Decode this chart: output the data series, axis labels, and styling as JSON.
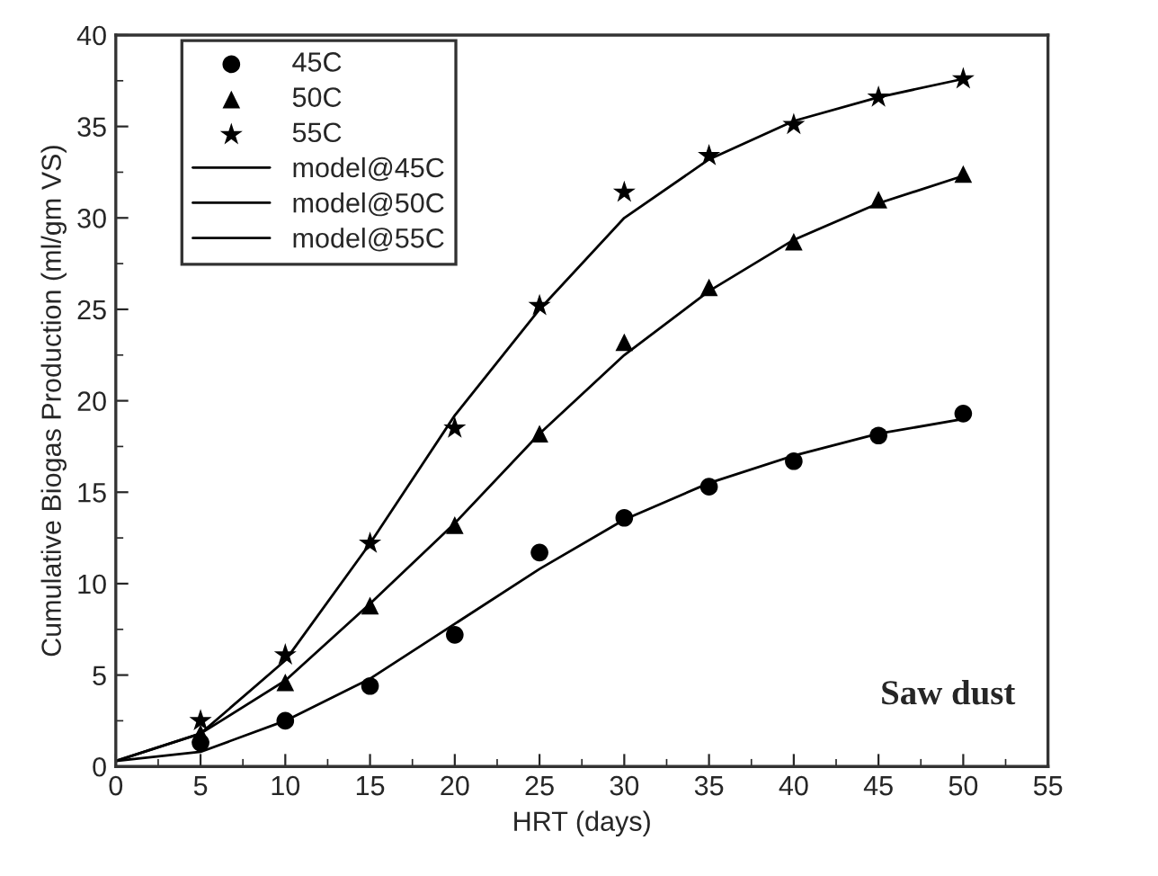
{
  "chart_data": {
    "type": "line",
    "xlabel": "HRT (days)",
    "ylabel": "Cumulative Biogas Production (ml/gm VS)",
    "xlim": [
      0,
      55
    ],
    "ylim": [
      0,
      40
    ],
    "xticks": [
      0,
      5,
      10,
      15,
      20,
      25,
      30,
      35,
      40,
      45,
      50,
      55
    ],
    "yticks": [
      0,
      5,
      10,
      15,
      20,
      25,
      30,
      35,
      40
    ],
    "grid": false,
    "legend": "top left",
    "annotations": [
      "Saw dust"
    ],
    "series": [
      {
        "name": "45C",
        "type": "scatter",
        "marker": "circle",
        "color": "#000000",
        "x": [
          5,
          10,
          15,
          20,
          25,
          30,
          35,
          40,
          45,
          50
        ],
        "values": [
          1.3,
          2.5,
          4.4,
          7.2,
          11.7,
          13.6,
          15.3,
          16.7,
          18.1,
          19.3
        ]
      },
      {
        "name": "50C",
        "type": "scatter",
        "marker": "triangle",
        "color": "#000000",
        "x": [
          5,
          10,
          15,
          20,
          25,
          30,
          35,
          40,
          45,
          50
        ],
        "values": [
          1.8,
          4.6,
          8.8,
          13.2,
          18.2,
          23.2,
          26.2,
          28.7,
          31.0,
          32.4
        ]
      },
      {
        "name": "55C",
        "type": "scatter",
        "marker": "star",
        "color": "#000000",
        "x": [
          5,
          10,
          15,
          20,
          25,
          30,
          35,
          40,
          45,
          50
        ],
        "values": [
          2.5,
          6.1,
          12.2,
          18.5,
          25.2,
          31.4,
          33.4,
          35.1,
          36.6,
          37.6
        ]
      },
      {
        "name": "model@45C",
        "marker": "none",
        "line_style": "solid",
        "color": "#000000",
        "x": [
          0,
          5,
          10,
          15,
          20,
          25,
          30,
          35,
          40,
          45,
          50
        ],
        "values": [
          0.3,
          0.8,
          2.5,
          4.8,
          7.8,
          10.8,
          13.5,
          15.5,
          17.0,
          18.2,
          19.0
        ]
      },
      {
        "name": "model@50C",
        "marker": "none",
        "line_style": "solid",
        "color": "#000000",
        "x": [
          0,
          5,
          10,
          15,
          20,
          25,
          30,
          35,
          40,
          45,
          50
        ],
        "values": [
          0.3,
          1.8,
          4.7,
          8.9,
          13.3,
          18.2,
          22.5,
          26.0,
          28.8,
          30.8,
          32.3
        ]
      },
      {
        "name": "model@55C",
        "marker": "none",
        "line_style": "solid",
        "color": "#000000",
        "x": [
          0,
          5,
          10,
          15,
          20,
          25,
          30,
          35,
          40,
          45,
          50
        ],
        "values": [
          0.3,
          1.8,
          5.8,
          12.2,
          19.2,
          25.0,
          30.0,
          33.2,
          35.3,
          36.6,
          37.6
        ]
      }
    ]
  }
}
